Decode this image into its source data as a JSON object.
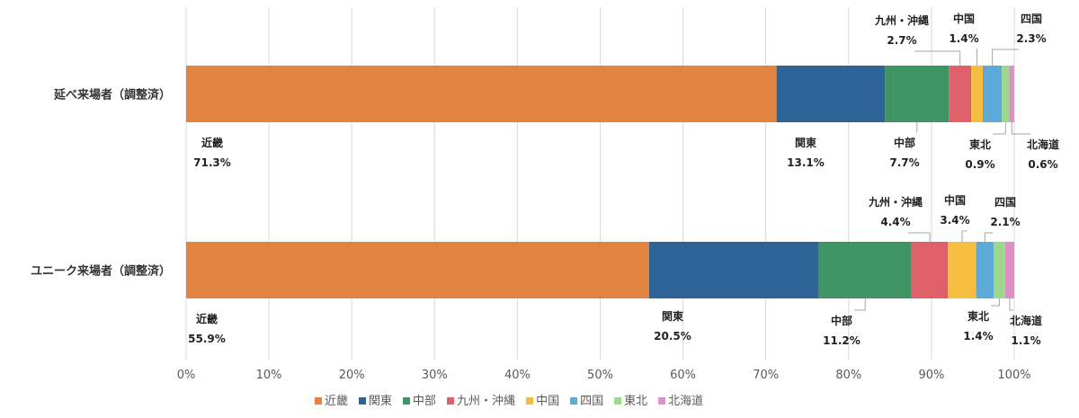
{
  "chart_data": {
    "type": "bar",
    "orientation": "horizontal",
    "stacked": true,
    "categories": [
      "延べ来場者（調整済）",
      "ユニーク来場者（調整済）"
    ],
    "xlim": [
      0,
      100
    ],
    "x_ticks": [
      "0%",
      "10%",
      "20%",
      "30%",
      "40%",
      "50%",
      "60%",
      "70%",
      "80%",
      "90%",
      "100%"
    ],
    "grid": true,
    "legend_position": "bottom",
    "series": [
      {
        "name": "近畿",
        "color": "#E0843F",
        "values": [
          71.3,
          55.9
        ],
        "labels": [
          "71.3%",
          "55.9%"
        ]
      },
      {
        "name": "関東",
        "color": "#2E6395",
        "values": [
          13.1,
          20.5
        ],
        "labels": [
          "13.1%",
          "20.5%"
        ]
      },
      {
        "name": "中部",
        "color": "#3E9563",
        "values": [
          7.7,
          11.2
        ],
        "labels": [
          "7.7%",
          "11.2%"
        ]
      },
      {
        "name": "九州・沖縄",
        "color": "#E0606A",
        "values": [
          2.7,
          4.4
        ],
        "labels": [
          "2.7%",
          "4.4%"
        ]
      },
      {
        "name": "中国",
        "color": "#F5BE41",
        "values": [
          1.4,
          3.4
        ],
        "labels": [
          "1.4%",
          "3.4%"
        ]
      },
      {
        "name": "四国",
        "color": "#5BAAD8",
        "values": [
          2.3,
          2.1
        ],
        "labels": [
          "2.3%",
          "2.1%"
        ]
      },
      {
        "name": "東北",
        "color": "#9AD98E",
        "values": [
          0.9,
          1.4
        ],
        "labels": [
          "0.9%",
          "1.4%"
        ]
      },
      {
        "name": "北海道",
        "color": "#DE8FC4",
        "values": [
          0.6,
          1.1
        ],
        "labels": [
          "0.6%",
          "1.1%"
        ]
      }
    ]
  }
}
